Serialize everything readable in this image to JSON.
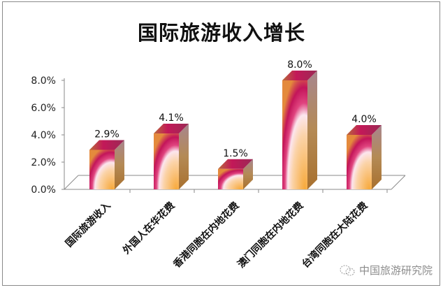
{
  "chart_data": {
    "type": "bar",
    "style": "3d-column",
    "title": "国际旅游收入增长",
    "categories": [
      "国际旅游收入",
      "外国人在华花费",
      "香港同胞在内地花费",
      "澳门同胞在内地花费",
      "台湾同胞在大陆花费"
    ],
    "values": [
      2.9,
      4.1,
      1.5,
      8.0,
      4.0
    ],
    "value_labels": [
      "2.9%",
      "4.1%",
      "1.5%",
      "8.0%",
      "4.0%"
    ],
    "xlabel": "",
    "ylabel": "",
    "ylim": [
      0,
      8.0
    ],
    "yticks": [
      "0.0%",
      "2.0%",
      "4.0%",
      "6.0%",
      "8.0%"
    ],
    "grid": false,
    "legend": null,
    "colors": {
      "bar_top_magenta": "#c8185a",
      "bar_light_orange": "#f8b04a",
      "bar_side_brown": "#b07a3a",
      "axis": "#8a8a8a"
    }
  },
  "watermark": {
    "text": "中国旅游研究院",
    "icon": "wechat-icon"
  }
}
